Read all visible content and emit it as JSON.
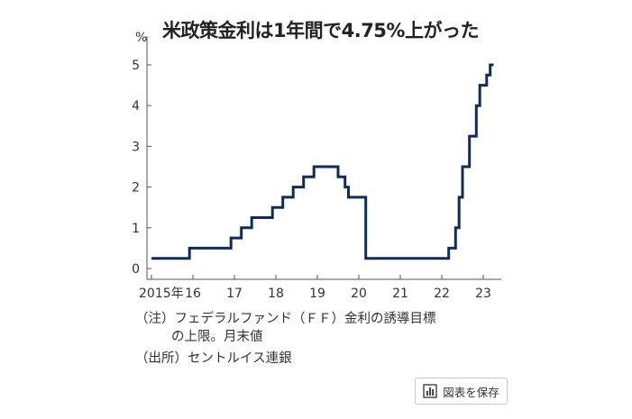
{
  "chart_data": {
    "type": "line",
    "title": "米政策金利は1年間で4.75%上がった",
    "unit_label": "%",
    "ylim": [
      0,
      5
    ],
    "y_ticks": [
      0,
      1,
      2,
      3,
      4,
      5
    ],
    "x_ticks": [
      {
        "value": 2015,
        "label": "2015年"
      },
      {
        "value": 2016,
        "label": "16"
      },
      {
        "value": 2017,
        "label": "17"
      },
      {
        "value": 2018,
        "label": "18"
      },
      {
        "value": 2019,
        "label": "19"
      },
      {
        "value": 2020,
        "label": "20"
      },
      {
        "value": 2021,
        "label": "21"
      },
      {
        "value": 2022,
        "label": "22"
      },
      {
        "value": 2023,
        "label": "23"
      }
    ],
    "series": [
      {
        "points": [
          [
            "2015-01",
            0.25
          ],
          [
            "2015-12",
            0.5
          ],
          [
            "2016-12",
            0.75
          ],
          [
            "2017-03",
            1.0
          ],
          [
            "2017-06",
            1.25
          ],
          [
            "2017-12",
            1.5
          ],
          [
            "2018-03",
            1.75
          ],
          [
            "2018-06",
            2.0
          ],
          [
            "2018-09",
            2.25
          ],
          [
            "2018-12",
            2.5
          ],
          [
            "2019-07",
            2.25
          ],
          [
            "2019-09",
            2.0
          ],
          [
            "2019-10",
            1.75
          ],
          [
            "2020-03",
            0.25
          ],
          [
            "2022-03",
            0.5
          ],
          [
            "2022-05",
            1.0
          ],
          [
            "2022-06",
            1.75
          ],
          [
            "2022-07",
            2.5
          ],
          [
            "2022-09",
            3.25
          ],
          [
            "2022-11",
            4.0
          ],
          [
            "2022-12",
            4.5
          ],
          [
            "2023-02",
            4.75
          ],
          [
            "2023-03",
            5.0
          ],
          [
            "2023-04",
            5.0
          ]
        ]
      }
    ],
    "series_color": "#0f2d57"
  },
  "notes": {
    "line1": "（注）フェデラルファンド（ＦＦ）金利の誘導目標",
    "line2": "の上限。月末値",
    "source": "（出所）セントルイス連銀"
  },
  "toolbar": {
    "save_label": "図表を保存",
    "save_icon": "bar-chart-icon"
  }
}
